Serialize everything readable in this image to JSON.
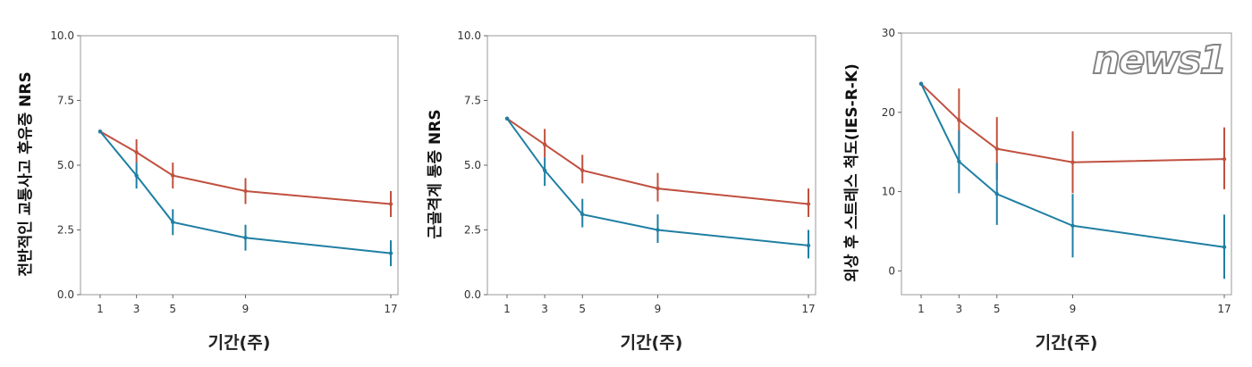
{
  "colors": {
    "series_a": "#c0503f",
    "series_b": "#1f7fa3"
  },
  "watermark": "news1",
  "chart_data": [
    {
      "type": "line",
      "xlabel": "기간(주)",
      "ylabel": "전반적인 교통사고 후유증 NRS",
      "x": [
        1,
        3,
        5,
        9,
        17
      ],
      "xticks": [
        "1",
        "3",
        "5",
        "9",
        "17"
      ],
      "ylim": [
        0,
        10
      ],
      "yticks": [
        "0.0",
        "2.5",
        "5.0",
        "7.5",
        "10.0"
      ],
      "ytickvals": [
        0,
        2.5,
        5,
        7.5,
        10
      ],
      "grid": false,
      "series": [
        {
          "color": "#c0503f",
          "values": [
            6.3,
            5.5,
            4.6,
            4.0,
            3.5
          ],
          "err_low": [
            6.3,
            5.1,
            4.1,
            3.5,
            3.0
          ],
          "err_high": [
            6.3,
            6.0,
            5.1,
            4.5,
            4.0
          ]
        },
        {
          "color": "#1f7fa3",
          "values": [
            6.3,
            4.6,
            2.8,
            2.2,
            1.6
          ],
          "err_low": [
            6.3,
            4.1,
            2.3,
            1.7,
            1.1
          ],
          "err_high": [
            6.3,
            5.1,
            3.3,
            2.7,
            2.1
          ]
        }
      ]
    },
    {
      "type": "line",
      "xlabel": "기간(주)",
      "ylabel": "근골격계 통증 NRS",
      "x": [
        1,
        3,
        5,
        9,
        17
      ],
      "xticks": [
        "1",
        "3",
        "5",
        "9",
        "17"
      ],
      "ylim": [
        0,
        10
      ],
      "yticks": [
        "0.0",
        "2.5",
        "5.0",
        "7.5",
        "10.0"
      ],
      "ytickvals": [
        0,
        2.5,
        5,
        7.5,
        10
      ],
      "grid": false,
      "series": [
        {
          "color": "#c0503f",
          "values": [
            6.8,
            5.8,
            4.8,
            4.1,
            3.5
          ],
          "err_low": [
            6.8,
            5.3,
            4.3,
            3.6,
            3.0
          ],
          "err_high": [
            6.8,
            6.4,
            5.4,
            4.7,
            4.1
          ]
        },
        {
          "color": "#1f7fa3",
          "values": [
            6.8,
            4.8,
            3.1,
            2.5,
            1.9
          ],
          "err_low": [
            6.8,
            4.2,
            2.6,
            2.0,
            1.4
          ],
          "err_high": [
            6.8,
            5.3,
            3.7,
            3.1,
            2.5
          ]
        }
      ]
    },
    {
      "type": "line",
      "xlabel": "기간(주)",
      "ylabel": "외상 후 스트레스 척도(IES-R-K)",
      "x": [
        1,
        3,
        5,
        9,
        17
      ],
      "xticks": [
        "1",
        "3",
        "5",
        "9",
        "17"
      ],
      "ylim": [
        -3,
        30
      ],
      "yticks": [
        "0",
        "10",
        "20",
        "30"
      ],
      "ytickvals": [
        0,
        10,
        20,
        30
      ],
      "grid": false,
      "series": [
        {
          "color": "#c0503f",
          "values": [
            23.6,
            19.0,
            15.4,
            13.7,
            14.1
          ],
          "err_low": [
            23.6,
            15.3,
            11.5,
            9.8,
            10.3
          ],
          "err_high": [
            23.6,
            23.0,
            19.4,
            17.6,
            18.1
          ]
        },
        {
          "color": "#1f7fa3",
          "values": [
            23.6,
            13.8,
            9.7,
            5.7,
            3.0
          ],
          "err_low": [
            23.6,
            9.8,
            5.8,
            1.7,
            -1.0
          ],
          "err_high": [
            23.6,
            17.7,
            13.6,
            9.7,
            7.1
          ]
        }
      ]
    }
  ]
}
